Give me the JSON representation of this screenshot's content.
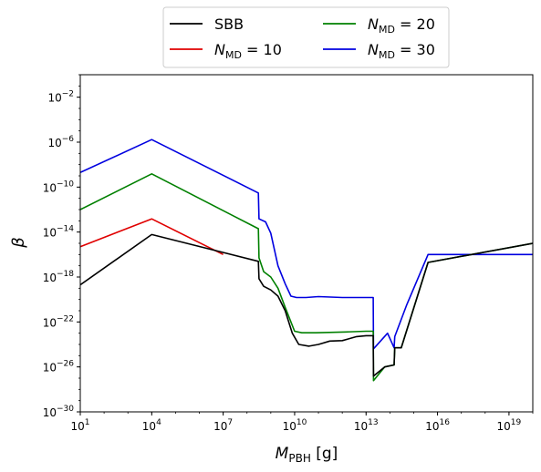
{
  "chart_data": {
    "type": "line",
    "x_scale": "log",
    "y_scale": "log",
    "xlim": [
      10,
      1e+20
    ],
    "ylim": [
      1e-30,
      1
    ],
    "x_major_ticks": [
      10,
      10000.0,
      10000000.0,
      10000000000.0,
      10000000000000.0,
      1e+16,
      1e+19
    ],
    "y_major_ticks": [
      1e-30,
      1e-26,
      1e-22,
      1e-18,
      1e-14,
      1e-10,
      1e-06,
      0.01
    ],
    "legend_position": "top-center-outside",
    "legend_columns": 2,
    "series": [
      {
        "name": "SBB",
        "color": "#000000",
        "points": [
          [
            10,
            2e-19
          ],
          [
            10000.0,
            6e-15
          ],
          [
            300000000.0,
            2.5e-17
          ],
          [
            320000000.0,
            7e-19
          ],
          [
            500000000.0,
            1.5e-19
          ],
          [
            1000000000.0,
            7e-20
          ],
          [
            2000000000.0,
            2e-20
          ],
          [
            4000000000.0,
            1e-21
          ],
          [
            8000000000.0,
            1e-23
          ],
          [
            15000000000.0,
            1e-24
          ],
          [
            40000000000.0,
            7e-25
          ],
          [
            100000000000.0,
            1e-24
          ],
          [
            300000000000.0,
            2e-24
          ],
          [
            1000000000000.0,
            2.2e-24
          ],
          [
            4000000000000.0,
            5e-24
          ],
          [
            10000000000000.0,
            6e-24
          ],
          [
            20000000000000.0,
            6e-24
          ],
          [
            20500000000000.0,
            1.5e-27
          ],
          [
            60000000000000.0,
            1e-26
          ],
          [
            150000000000000.0,
            1.5e-26
          ],
          [
            160000000000000.0,
            5e-25
          ],
          [
            300000000000000.0,
            5e-25
          ],
          [
            4000000000000000.0,
            2e-17
          ],
          [
            1e+20,
            1e-15
          ]
        ]
      },
      {
        "name": "N_MD=10",
        "color": "#e00000",
        "points": [
          [
            10,
            5e-16
          ],
          [
            10000.0,
            1.5e-13
          ],
          [
            10000000.0,
            1e-16
          ]
        ]
      },
      {
        "name": "N_MD=20",
        "color": "#008000",
        "points": [
          [
            10,
            1e-12
          ],
          [
            10000.0,
            1.5e-09
          ],
          [
            300000000.0,
            2e-14
          ],
          [
            320000000.0,
            5e-17
          ],
          [
            500000000.0,
            3e-18
          ],
          [
            1000000000.0,
            1e-18
          ],
          [
            2000000000.0,
            1e-19
          ],
          [
            4000000000.0,
            2e-21
          ],
          [
            10000000000.0,
            1.5e-23
          ],
          [
            20000000000.0,
            1.1e-23
          ],
          [
            80000000000.0,
            1.1e-23
          ],
          [
            1500000000000.0,
            1.3e-23
          ],
          [
            10000000000000.0,
            1.5e-23
          ],
          [
            20000000000000.0,
            1.5e-23
          ],
          [
            20500000000000.0,
            6e-28
          ],
          [
            60000000000000.0,
            1e-26
          ],
          [
            150000000000000.0,
            1.5e-26
          ],
          [
            160000000000000.0,
            5e-25
          ],
          [
            300000000000000.0,
            5e-25
          ],
          [
            4000000000000000.0,
            2e-17
          ],
          [
            1e+20,
            1e-15
          ]
        ]
      },
      {
        "name": "N_MD=30",
        "color": "#0000e0",
        "points": [
          [
            10,
            2e-09
          ],
          [
            10000.0,
            1.7e-06
          ],
          [
            300000000.0,
            3e-11
          ],
          [
            320000000.0,
            1.5e-13
          ],
          [
            600000000.0,
            8e-14
          ],
          [
            1000000000.0,
            8e-15
          ],
          [
            2000000000.0,
            1e-17
          ],
          [
            4000000000.0,
            2.5e-19
          ],
          [
            7000000000.0,
            2e-20
          ],
          [
            12000000000.0,
            1.5e-20
          ],
          [
            30000000000.0,
            1.5e-20
          ],
          [
            100000000000.0,
            1.8e-20
          ],
          [
            1000000000000.0,
            1.5e-20
          ],
          [
            20000000000000.0,
            1.5e-20
          ],
          [
            20500000000000.0,
            4e-25
          ],
          [
            80000000000000.0,
            1e-23
          ],
          [
            150000000000000.0,
            5e-25
          ],
          [
            160000000000000.0,
            5e-24
          ],
          [
            500000000000000.0,
            3e-21
          ],
          [
            4000000000000000.0,
            1e-16
          ],
          [
            1e+20,
            1e-16
          ]
        ]
      }
    ]
  }
}
